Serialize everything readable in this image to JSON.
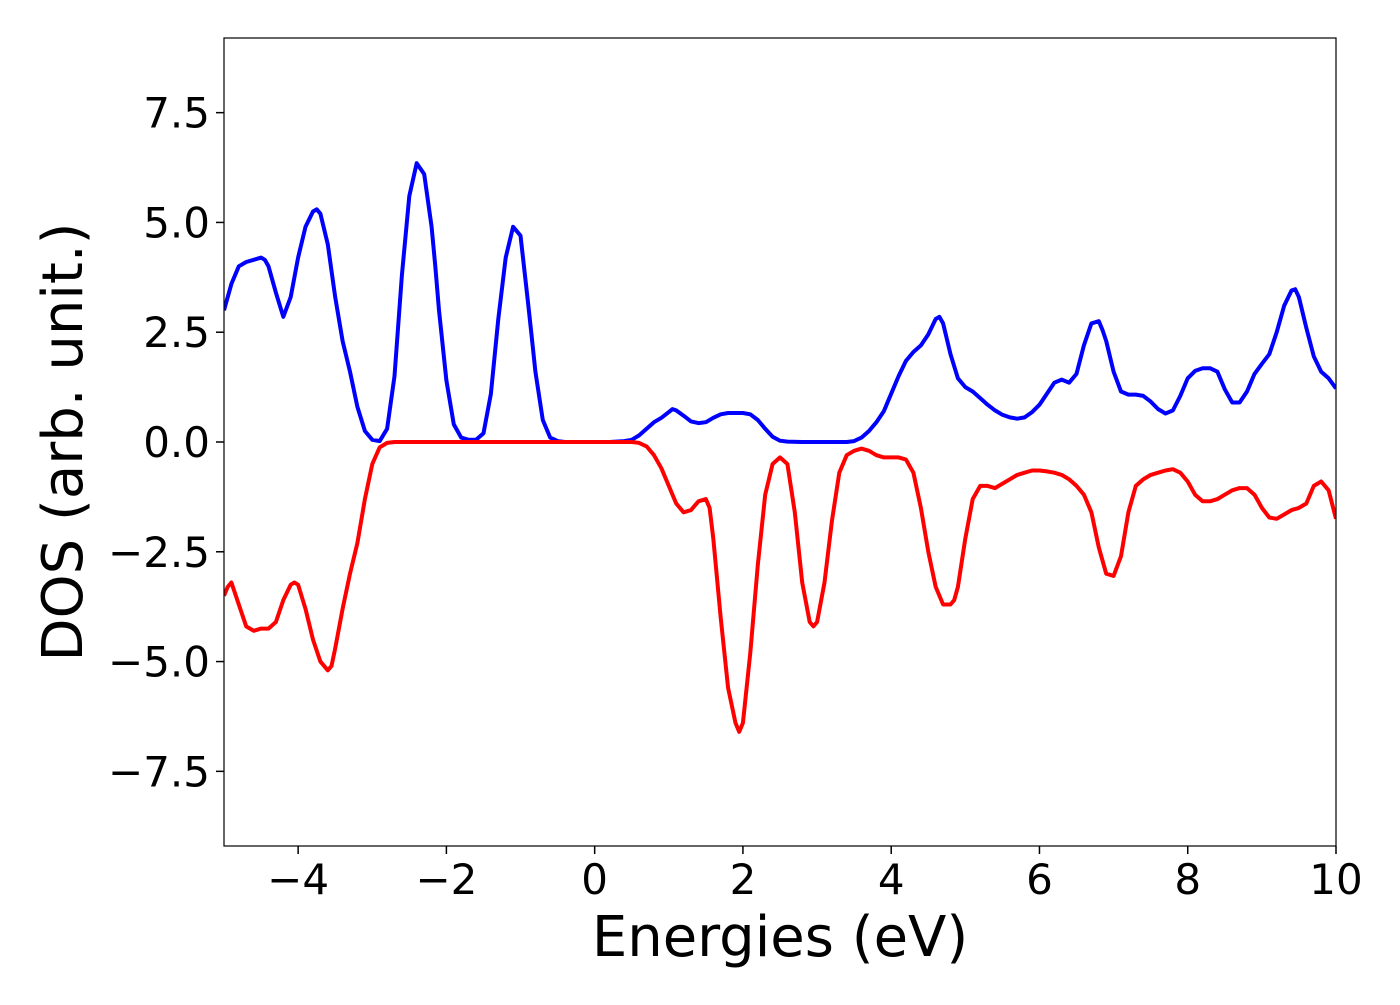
{
  "chart_data": {
    "type": "line",
    "title": "",
    "xlabel": "Energies (eV)",
    "ylabel": "DOS (arb. unit.)",
    "xlim": [
      -5,
      10
    ],
    "ylim": [
      -9.2,
      9.2
    ],
    "grid": false,
    "legend": "none",
    "xticks": [
      -4,
      -2,
      0,
      2,
      4,
      6,
      8,
      10
    ],
    "xtick_labels": [
      "−4",
      "−2",
      "0",
      "2",
      "4",
      "6",
      "8",
      "10"
    ],
    "yticks": [
      7.5,
      5.0,
      2.5,
      0.0,
      -2.5,
      -5.0,
      -7.5
    ],
    "ytick_labels": [
      "7.5",
      "5.0",
      "2.5",
      "0.0",
      "−2.5",
      "−5.0",
      "−7.5"
    ],
    "series": [
      {
        "color": "#0000ff",
        "x": [
          -5.0,
          -4.9,
          -4.8,
          -4.7,
          -4.6,
          -4.5,
          -4.45,
          -4.4,
          -4.3,
          -4.2,
          -4.1,
          -4.0,
          -3.9,
          -3.8,
          -3.75,
          -3.7,
          -3.6,
          -3.5,
          -3.4,
          -3.3,
          -3.2,
          -3.1,
          -3.0,
          -2.9,
          -2.8,
          -2.7,
          -2.6,
          -2.5,
          -2.4,
          -2.3,
          -2.2,
          -2.15,
          -2.1,
          -2.0,
          -1.9,
          -1.8,
          -1.7,
          -1.6,
          -1.5,
          -1.4,
          -1.3,
          -1.2,
          -1.1,
          -1.0,
          -0.9,
          -0.85,
          -0.8,
          -0.7,
          -0.6,
          -0.5,
          -0.4,
          -0.3,
          -0.2,
          -0.1,
          0.0,
          0.2,
          0.4,
          0.5,
          0.6,
          0.7,
          0.8,
          0.9,
          1.0,
          1.05,
          1.1,
          1.2,
          1.3,
          1.4,
          1.5,
          1.6,
          1.7,
          1.8,
          1.9,
          2.0,
          2.1,
          2.2,
          2.3,
          2.4,
          2.5,
          2.6,
          2.8,
          3.0,
          3.2,
          3.4,
          3.5,
          3.6,
          3.7,
          3.8,
          3.9,
          4.0,
          4.1,
          4.2,
          4.3,
          4.4,
          4.5,
          4.6,
          4.65,
          4.7,
          4.8,
          4.9,
          5.0,
          5.1,
          5.2,
          5.3,
          5.4,
          5.5,
          5.6,
          5.7,
          5.8,
          5.9,
          6.0,
          6.1,
          6.2,
          6.3,
          6.4,
          6.5,
          6.6,
          6.7,
          6.8,
          6.85,
          6.9,
          7.0,
          7.1,
          7.2,
          7.3,
          7.4,
          7.5,
          7.6,
          7.7,
          7.8,
          7.9,
          8.0,
          8.1,
          8.2,
          8.3,
          8.4,
          8.5,
          8.6,
          8.7,
          8.8,
          8.9,
          9.0,
          9.1,
          9.2,
          9.3,
          9.4,
          9.45,
          9.5,
          9.6,
          9.7,
          9.8,
          9.9,
          10.0
        ],
        "y": [
          3.0,
          3.6,
          4.0,
          4.1,
          4.15,
          4.2,
          4.15,
          4.0,
          3.4,
          2.85,
          3.3,
          4.2,
          4.9,
          5.25,
          5.3,
          5.2,
          4.5,
          3.3,
          2.3,
          1.6,
          0.8,
          0.25,
          0.05,
          0.02,
          0.3,
          1.5,
          3.8,
          5.6,
          6.35,
          6.1,
          4.9,
          4.0,
          3.0,
          1.4,
          0.4,
          0.1,
          0.05,
          0.05,
          0.2,
          1.1,
          2.8,
          4.2,
          4.9,
          4.7,
          3.2,
          2.4,
          1.6,
          0.5,
          0.1,
          0.02,
          0.0,
          0.0,
          0.0,
          0.0,
          0.0,
          0.0,
          0.02,
          0.05,
          0.15,
          0.3,
          0.45,
          0.55,
          0.68,
          0.75,
          0.72,
          0.6,
          0.47,
          0.43,
          0.45,
          0.55,
          0.63,
          0.66,
          0.66,
          0.66,
          0.63,
          0.5,
          0.3,
          0.12,
          0.03,
          0.01,
          0.0,
          0.0,
          0.0,
          0.0,
          0.02,
          0.1,
          0.25,
          0.45,
          0.7,
          1.1,
          1.5,
          1.85,
          2.05,
          2.2,
          2.45,
          2.8,
          2.85,
          2.7,
          2.0,
          1.45,
          1.25,
          1.15,
          1.0,
          0.85,
          0.72,
          0.62,
          0.56,
          0.53,
          0.56,
          0.68,
          0.85,
          1.1,
          1.35,
          1.42,
          1.35,
          1.55,
          2.2,
          2.7,
          2.75,
          2.55,
          2.3,
          1.6,
          1.15,
          1.08,
          1.08,
          1.05,
          0.92,
          0.75,
          0.65,
          0.72,
          1.05,
          1.45,
          1.62,
          1.68,
          1.68,
          1.6,
          1.2,
          0.9,
          0.9,
          1.15,
          1.55,
          1.78,
          2.0,
          2.5,
          3.1,
          3.45,
          3.48,
          3.3,
          2.6,
          1.95,
          1.6,
          1.45,
          1.22
        ]
      },
      {
        "color": "#ff0000",
        "x": [
          -5.0,
          -4.95,
          -4.9,
          -4.8,
          -4.7,
          -4.6,
          -4.5,
          -4.4,
          -4.3,
          -4.2,
          -4.1,
          -4.05,
          -4.0,
          -3.9,
          -3.8,
          -3.7,
          -3.6,
          -3.55,
          -3.5,
          -3.4,
          -3.3,
          -3.2,
          -3.1,
          -3.0,
          -2.9,
          -2.8,
          -2.7,
          -2.6,
          -2.0,
          -1.0,
          0.0,
          0.5,
          0.6,
          0.7,
          0.8,
          0.9,
          1.0,
          1.1,
          1.2,
          1.3,
          1.35,
          1.4,
          1.5,
          1.55,
          1.6,
          1.7,
          1.8,
          1.9,
          1.95,
          2.0,
          2.1,
          2.2,
          2.3,
          2.4,
          2.5,
          2.6,
          2.7,
          2.8,
          2.9,
          2.95,
          3.0,
          3.1,
          3.2,
          3.3,
          3.4,
          3.5,
          3.6,
          3.7,
          3.8,
          3.9,
          4.0,
          4.1,
          4.2,
          4.3,
          4.4,
          4.5,
          4.6,
          4.7,
          4.8,
          4.85,
          4.9,
          5.0,
          5.1,
          5.2,
          5.3,
          5.4,
          5.5,
          5.6,
          5.7,
          5.8,
          5.9,
          6.0,
          6.1,
          6.2,
          6.3,
          6.4,
          6.5,
          6.6,
          6.7,
          6.8,
          6.9,
          7.0,
          7.1,
          7.2,
          7.3,
          7.4,
          7.5,
          7.6,
          7.7,
          7.8,
          7.9,
          8.0,
          8.1,
          8.2,
          8.3,
          8.4,
          8.5,
          8.6,
          8.7,
          8.8,
          8.9,
          9.0,
          9.1,
          9.2,
          9.3,
          9.4,
          9.5,
          9.6,
          9.7,
          9.8,
          9.9,
          10.0
        ],
        "y": [
          -3.5,
          -3.3,
          -3.2,
          -3.7,
          -4.2,
          -4.3,
          -4.25,
          -4.25,
          -4.1,
          -3.6,
          -3.25,
          -3.2,
          -3.25,
          -3.8,
          -4.5,
          -5.0,
          -5.2,
          -5.1,
          -4.7,
          -3.8,
          -3.0,
          -2.3,
          -1.3,
          -0.5,
          -0.12,
          -0.02,
          0.0,
          0.0,
          0.0,
          0.0,
          0.0,
          0.0,
          -0.02,
          -0.1,
          -0.3,
          -0.6,
          -1.0,
          -1.4,
          -1.6,
          -1.55,
          -1.45,
          -1.35,
          -1.3,
          -1.5,
          -2.2,
          -4.0,
          -5.6,
          -6.4,
          -6.6,
          -6.4,
          -4.8,
          -2.8,
          -1.2,
          -0.5,
          -0.35,
          -0.5,
          -1.6,
          -3.2,
          -4.1,
          -4.2,
          -4.1,
          -3.2,
          -1.8,
          -0.7,
          -0.3,
          -0.2,
          -0.15,
          -0.2,
          -0.3,
          -0.35,
          -0.35,
          -0.35,
          -0.4,
          -0.7,
          -1.5,
          -2.5,
          -3.3,
          -3.7,
          -3.7,
          -3.6,
          -3.3,
          -2.2,
          -1.3,
          -1.0,
          -1.0,
          -1.05,
          -0.95,
          -0.85,
          -0.75,
          -0.7,
          -0.65,
          -0.65,
          -0.67,
          -0.7,
          -0.75,
          -0.85,
          -1.0,
          -1.2,
          -1.6,
          -2.4,
          -3.0,
          -3.05,
          -2.6,
          -1.6,
          -1.0,
          -0.85,
          -0.75,
          -0.7,
          -0.65,
          -0.62,
          -0.7,
          -0.9,
          -1.2,
          -1.35,
          -1.35,
          -1.3,
          -1.2,
          -1.1,
          -1.05,
          -1.05,
          -1.2,
          -1.5,
          -1.72,
          -1.75,
          -1.65,
          -1.55,
          -1.5,
          -1.4,
          -1.0,
          -0.9,
          -1.1,
          -1.75
        ]
      }
    ]
  }
}
